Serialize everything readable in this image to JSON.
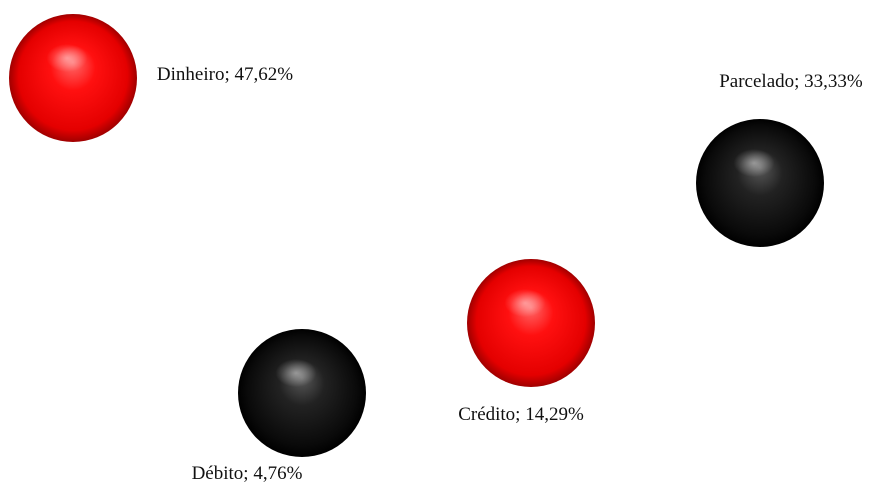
{
  "chart_data": {
    "type": "scatter",
    "title": "",
    "xlabel": "",
    "ylabel": "",
    "grid": false,
    "legend": "none",
    "points": [
      {
        "category": "Dinheiro",
        "value_label": "47,62%",
        "value": 47.62,
        "color": "red"
      },
      {
        "category": "Parcelado",
        "value_label": "33,33%",
        "value": 33.33,
        "color": "black"
      },
      {
        "category": "Crédito",
        "value_label": "14,29%",
        "value": 14.29,
        "color": "red"
      },
      {
        "category": "Débito",
        "value_label": "4,76%",
        "value": 4.76,
        "color": "black"
      }
    ]
  },
  "colors": {
    "red": "#ff0000",
    "black": "#111111"
  }
}
